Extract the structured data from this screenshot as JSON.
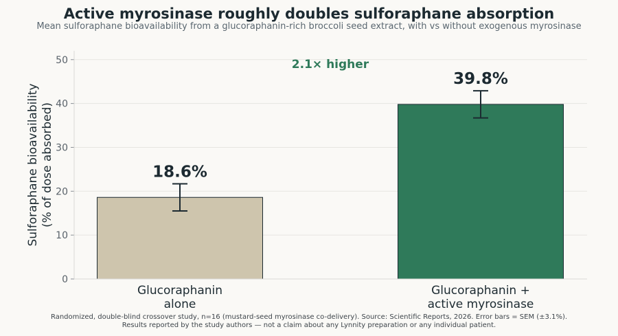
{
  "chart_data": {
    "type": "bar",
    "title": "Active myrosinase roughly doubles sulforaphane absorption",
    "subtitle": "Mean sulforaphane bioavailability from a glucoraphanin-rich broccoli seed extract, with vs without exogenous myrosinase",
    "ylabel_lines": [
      "Sulforaphane bioavailability",
      "(% of dose absorbed)"
    ],
    "ylim": [
      0,
      52
    ],
    "yticks": [
      0,
      10,
      20,
      30,
      40,
      50
    ],
    "grid": true,
    "categories": [
      {
        "lines": [
          "Glucoraphanin",
          "alone"
        ]
      },
      {
        "lines": [
          "Glucoraphanin +",
          "active myrosinase"
        ]
      }
    ],
    "values": [
      18.6,
      39.8
    ],
    "value_labels": [
      "18.6%",
      "39.8%"
    ],
    "error": [
      3.1,
      3.1
    ],
    "bar_colors": [
      "#cec5ad",
      "#2f7a5a"
    ],
    "annotation": "2.1× higher",
    "annotation_color": "#2f7a5a",
    "footnote_lines": [
      "Randomized, double-blind crossover study, n=16 (mustard-seed myrosinase co-delivery). Source: Scientific Reports, 2026. Error bars = SEM (±3.1%).",
      "Results reported by the study authors — not a claim about any Lynnity preparation or any individual patient."
    ]
  }
}
